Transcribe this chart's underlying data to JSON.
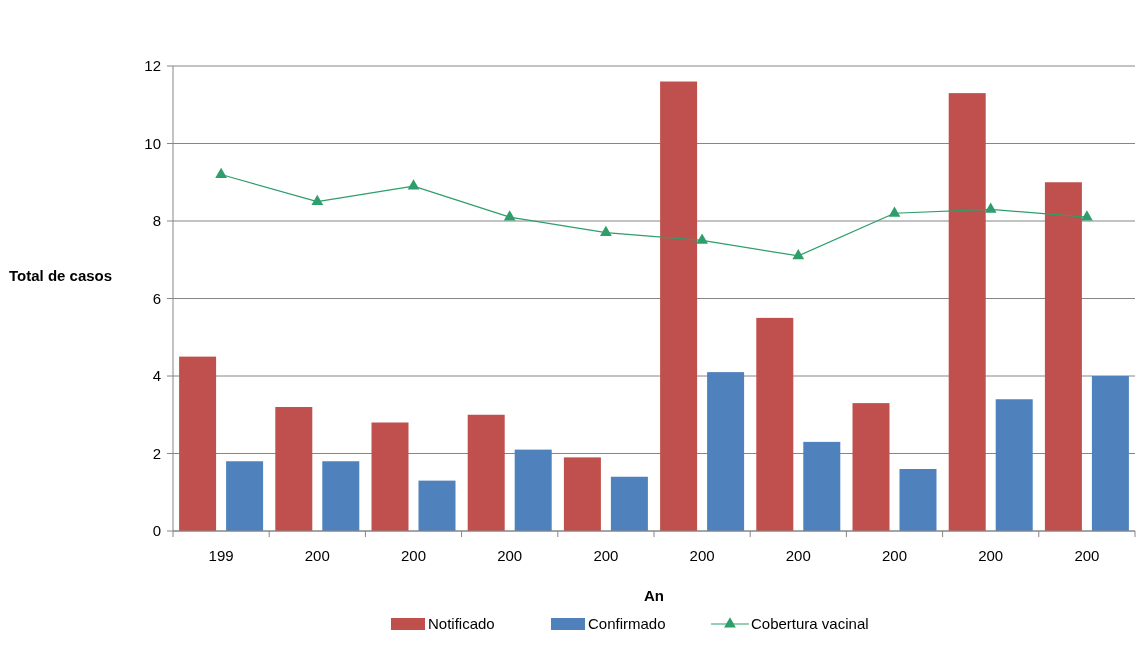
{
  "chart_data": {
    "type": "bar",
    "xlabel": "An",
    "ylabel": "Total de casos",
    "categories": [
      "199",
      "200",
      "200",
      "200",
      "200",
      "200",
      "200",
      "200",
      "200",
      "200"
    ],
    "series": [
      {
        "name": "Notificado",
        "color": "#c0504d",
        "values": [
          4.5,
          3.2,
          2.8,
          3.0,
          1.9,
          11.6,
          5.5,
          3.3,
          11.3,
          9.0
        ]
      },
      {
        "name": "Confirmado",
        "color": "#4f81bd",
        "values": [
          1.8,
          1.8,
          1.3,
          2.1,
          1.4,
          4.1,
          2.3,
          1.6,
          3.4,
          4.0
        ]
      },
      {
        "name": "Cobertura vacinal",
        "type": "line",
        "color": "#2e9e6b",
        "marker": "triangle",
        "values": [
          9.2,
          8.5,
          8.9,
          8.1,
          7.7,
          7.5,
          7.1,
          8.2,
          8.3,
          8.1
        ]
      }
    ],
    "ylim": [
      0,
      12
    ],
    "yticks": [
      0,
      2,
      4,
      6,
      8,
      10,
      12
    ],
    "grid": "y",
    "legend": "bottom"
  }
}
